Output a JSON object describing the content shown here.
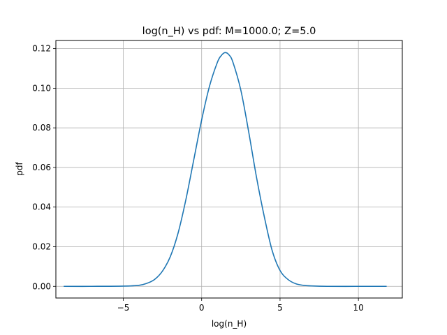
{
  "chart_data": {
    "type": "line",
    "title": "log(n_H) vs pdf: M=1000.0; Z=5.0",
    "xlabel": "log(n_H)",
    "ylabel": "pdf",
    "xlim": [
      -9.3,
      12.8
    ],
    "ylim": [
      -0.0059,
      0.1241
    ],
    "xticks": [
      -5,
      0,
      5,
      10
    ],
    "xtick_labels": [
      "−5",
      "0",
      "5",
      "10"
    ],
    "yticks": [
      0.0,
      0.02,
      0.04,
      0.06,
      0.08,
      0.1,
      0.12
    ],
    "ytick_labels": [
      "0.00",
      "0.02",
      "0.04",
      "0.06",
      "0.08",
      "0.10",
      "0.12"
    ],
    "grid": true,
    "legend": "none",
    "series": [
      {
        "color": "#1f77b4",
        "x": [
          -8.8,
          -7.0,
          -5.0,
          -4.0,
          -3.5,
          -3.0,
          -2.5,
          -2.0,
          -1.5,
          -1.0,
          -0.5,
          0.0,
          0.5,
          1.0,
          1.25,
          1.5,
          1.75,
          2.0,
          2.5,
          3.0,
          3.5,
          4.0,
          4.5,
          5.0,
          5.5,
          6.0,
          6.5,
          7.0,
          8.0,
          10.0,
          11.8
        ],
        "y": [
          0.0,
          0.0,
          0.0001,
          0.0005,
          0.0015,
          0.0035,
          0.0077,
          0.015,
          0.027,
          0.044,
          0.064,
          0.084,
          0.101,
          0.113,
          0.1165,
          0.118,
          0.1168,
          0.113,
          0.099,
          0.078,
          0.055,
          0.035,
          0.018,
          0.008,
          0.0035,
          0.0013,
          0.0005,
          0.0002,
          0.0,
          0.0,
          0.0
        ]
      }
    ]
  }
}
